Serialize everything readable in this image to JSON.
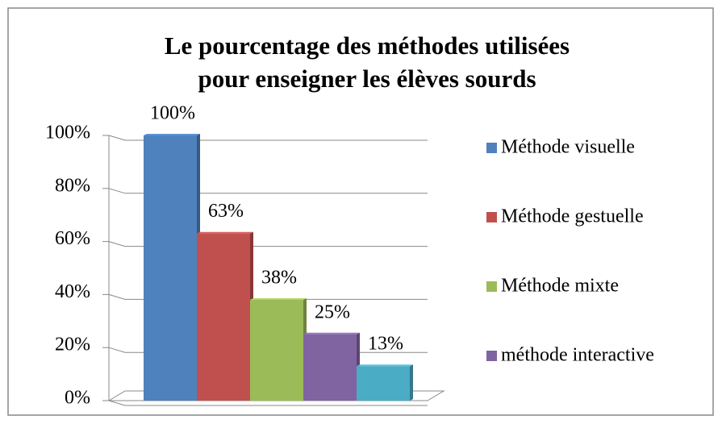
{
  "chart_data": {
    "type": "bar",
    "title": [
      "Le pourcentage  des méthodes utilisées",
      "pour enseigner les élèves sourds"
    ],
    "categories": [
      "Méthode visuelle",
      "Méthode gestuelle",
      "Méthode mixte",
      "méthode interactive",
      null
    ],
    "values": [
      100,
      63,
      38,
      25,
      13
    ],
    "value_labels": [
      "100%",
      "63%",
      "38%",
      "25%",
      "13%"
    ],
    "colors": [
      "#4f81bd",
      "#c0504d",
      "#9bbb59",
      "#8064a2",
      "#4bacc6"
    ],
    "ylim": [
      0,
      100
    ],
    "yticks": [
      {
        "value": 0,
        "label": "0%"
      },
      {
        "value": 20,
        "label": "20%"
      },
      {
        "value": 40,
        "label": "40%"
      },
      {
        "value": 60,
        "label": "60%"
      },
      {
        "value": 80,
        "label": "80%"
      },
      {
        "value": 100,
        "label": "100%"
      }
    ],
    "grid": true,
    "legend": "right"
  }
}
